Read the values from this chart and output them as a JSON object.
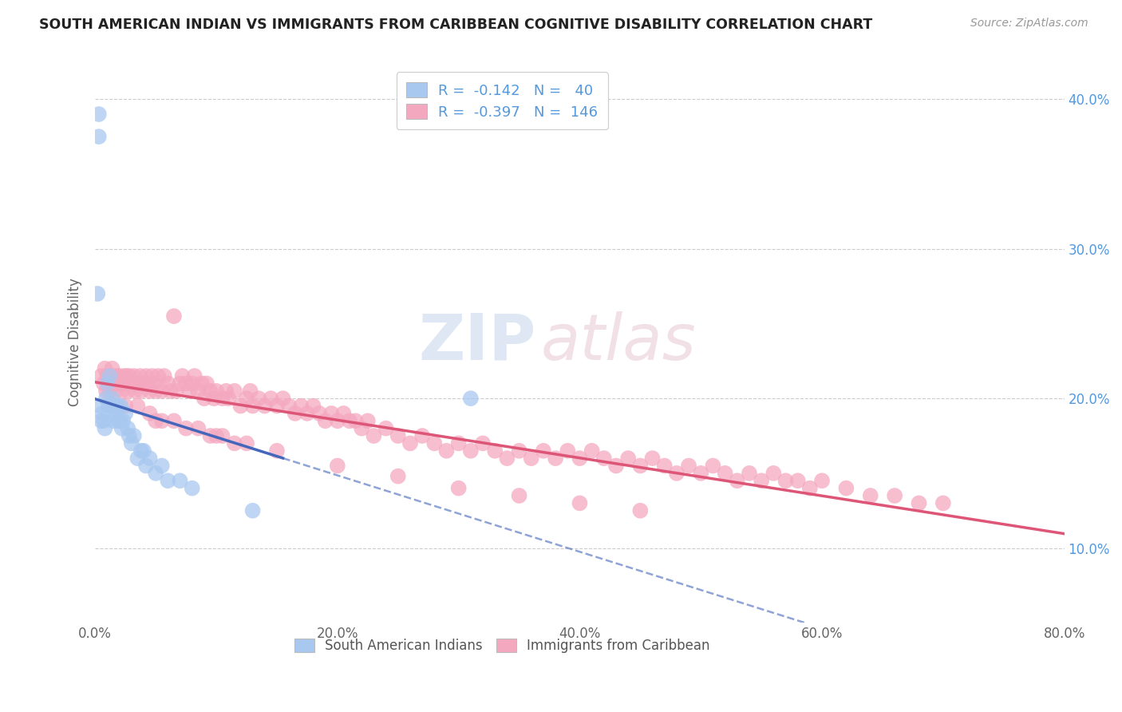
{
  "title": "SOUTH AMERICAN INDIAN VS IMMIGRANTS FROM CARIBBEAN COGNITIVE DISABILITY CORRELATION CHART",
  "source": "Source: ZipAtlas.com",
  "ylabel": "Cognitive Disability",
  "xlim": [
    0.0,
    0.8
  ],
  "ylim": [
    0.05,
    0.425
  ],
  "yticks": [
    0.1,
    0.2,
    0.3,
    0.4
  ],
  "xticks": [
    0.0,
    0.2,
    0.4,
    0.6,
    0.8
  ],
  "xtick_labels": [
    "0.0%",
    "20.0%",
    "40.0%",
    "60.0%",
    "80.0%"
  ],
  "right_ytick_labels": [
    "10.0%",
    "20.0%",
    "30.0%",
    "40.0%"
  ],
  "blue_R": -0.142,
  "blue_N": 40,
  "pink_R": -0.397,
  "pink_N": 146,
  "blue_color": "#a8c8f0",
  "pink_color": "#f4a8c0",
  "blue_line_color": "#4466bb",
  "pink_line_color": "#dd5577",
  "watermark_zip": "ZIP",
  "watermark_atlas": "atlas",
  "blue_scatter_x": [
    0.003,
    0.003,
    0.004,
    0.005,
    0.006,
    0.007,
    0.008,
    0.009,
    0.01,
    0.011,
    0.012,
    0.013,
    0.014,
    0.015,
    0.016,
    0.017,
    0.018,
    0.019,
    0.02,
    0.021,
    0.022,
    0.023,
    0.025,
    0.027,
    0.028,
    0.03,
    0.032,
    0.035,
    0.038,
    0.04,
    0.042,
    0.045,
    0.05,
    0.055,
    0.06,
    0.07,
    0.08,
    0.13,
    0.31,
    0.002
  ],
  "blue_scatter_y": [
    0.39,
    0.375,
    0.195,
    0.185,
    0.19,
    0.185,
    0.18,
    0.2,
    0.21,
    0.195,
    0.215,
    0.195,
    0.2,
    0.185,
    0.195,
    0.19,
    0.195,
    0.185,
    0.185,
    0.195,
    0.18,
    0.185,
    0.19,
    0.18,
    0.175,
    0.17,
    0.175,
    0.16,
    0.165,
    0.165,
    0.155,
    0.16,
    0.15,
    0.155,
    0.145,
    0.145,
    0.14,
    0.125,
    0.2,
    0.27
  ],
  "pink_scatter_x": [
    0.005,
    0.007,
    0.008,
    0.009,
    0.01,
    0.011,
    0.012,
    0.013,
    0.014,
    0.015,
    0.016,
    0.017,
    0.018,
    0.019,
    0.02,
    0.021,
    0.022,
    0.023,
    0.024,
    0.025,
    0.026,
    0.027,
    0.028,
    0.03,
    0.032,
    0.033,
    0.035,
    0.037,
    0.038,
    0.04,
    0.042,
    0.043,
    0.045,
    0.047,
    0.048,
    0.05,
    0.052,
    0.055,
    0.057,
    0.06,
    0.062,
    0.065,
    0.067,
    0.07,
    0.072,
    0.075,
    0.078,
    0.08,
    0.082,
    0.085,
    0.088,
    0.09,
    0.092,
    0.095,
    0.098,
    0.1,
    0.105,
    0.108,
    0.11,
    0.115,
    0.12,
    0.125,
    0.128,
    0.13,
    0.135,
    0.14,
    0.145,
    0.15,
    0.155,
    0.16,
    0.165,
    0.17,
    0.175,
    0.18,
    0.185,
    0.19,
    0.195,
    0.2,
    0.205,
    0.21,
    0.215,
    0.22,
    0.225,
    0.23,
    0.24,
    0.25,
    0.26,
    0.27,
    0.28,
    0.29,
    0.3,
    0.31,
    0.32,
    0.33,
    0.34,
    0.35,
    0.36,
    0.37,
    0.38,
    0.39,
    0.4,
    0.41,
    0.42,
    0.43,
    0.44,
    0.45,
    0.46,
    0.47,
    0.48,
    0.49,
    0.5,
    0.51,
    0.52,
    0.53,
    0.54,
    0.55,
    0.56,
    0.57,
    0.58,
    0.59,
    0.6,
    0.62,
    0.64,
    0.66,
    0.68,
    0.7,
    0.025,
    0.035,
    0.045,
    0.055,
    0.065,
    0.075,
    0.085,
    0.095,
    0.105,
    0.115,
    0.125,
    0.05,
    0.1,
    0.15,
    0.2,
    0.25,
    0.3,
    0.35,
    0.4,
    0.45
  ],
  "pink_scatter_y": [
    0.215,
    0.21,
    0.22,
    0.205,
    0.215,
    0.21,
    0.205,
    0.215,
    0.22,
    0.215,
    0.21,
    0.205,
    0.215,
    0.21,
    0.215,
    0.21,
    0.205,
    0.21,
    0.215,
    0.21,
    0.215,
    0.205,
    0.215,
    0.21,
    0.215,
    0.205,
    0.21,
    0.215,
    0.205,
    0.21,
    0.215,
    0.21,
    0.205,
    0.215,
    0.21,
    0.205,
    0.215,
    0.205,
    0.215,
    0.21,
    0.205,
    0.255,
    0.205,
    0.21,
    0.215,
    0.21,
    0.205,
    0.21,
    0.215,
    0.205,
    0.21,
    0.2,
    0.21,
    0.205,
    0.2,
    0.205,
    0.2,
    0.205,
    0.2,
    0.205,
    0.195,
    0.2,
    0.205,
    0.195,
    0.2,
    0.195,
    0.2,
    0.195,
    0.2,
    0.195,
    0.19,
    0.195,
    0.19,
    0.195,
    0.19,
    0.185,
    0.19,
    0.185,
    0.19,
    0.185,
    0.185,
    0.18,
    0.185,
    0.175,
    0.18,
    0.175,
    0.17,
    0.175,
    0.17,
    0.165,
    0.17,
    0.165,
    0.17,
    0.165,
    0.16,
    0.165,
    0.16,
    0.165,
    0.16,
    0.165,
    0.16,
    0.165,
    0.16,
    0.155,
    0.16,
    0.155,
    0.16,
    0.155,
    0.15,
    0.155,
    0.15,
    0.155,
    0.15,
    0.145,
    0.15,
    0.145,
    0.15,
    0.145,
    0.145,
    0.14,
    0.145,
    0.14,
    0.135,
    0.135,
    0.13,
    0.13,
    0.195,
    0.195,
    0.19,
    0.185,
    0.185,
    0.18,
    0.18,
    0.175,
    0.175,
    0.17,
    0.17,
    0.185,
    0.175,
    0.165,
    0.155,
    0.148,
    0.14,
    0.135,
    0.13,
    0.125
  ]
}
